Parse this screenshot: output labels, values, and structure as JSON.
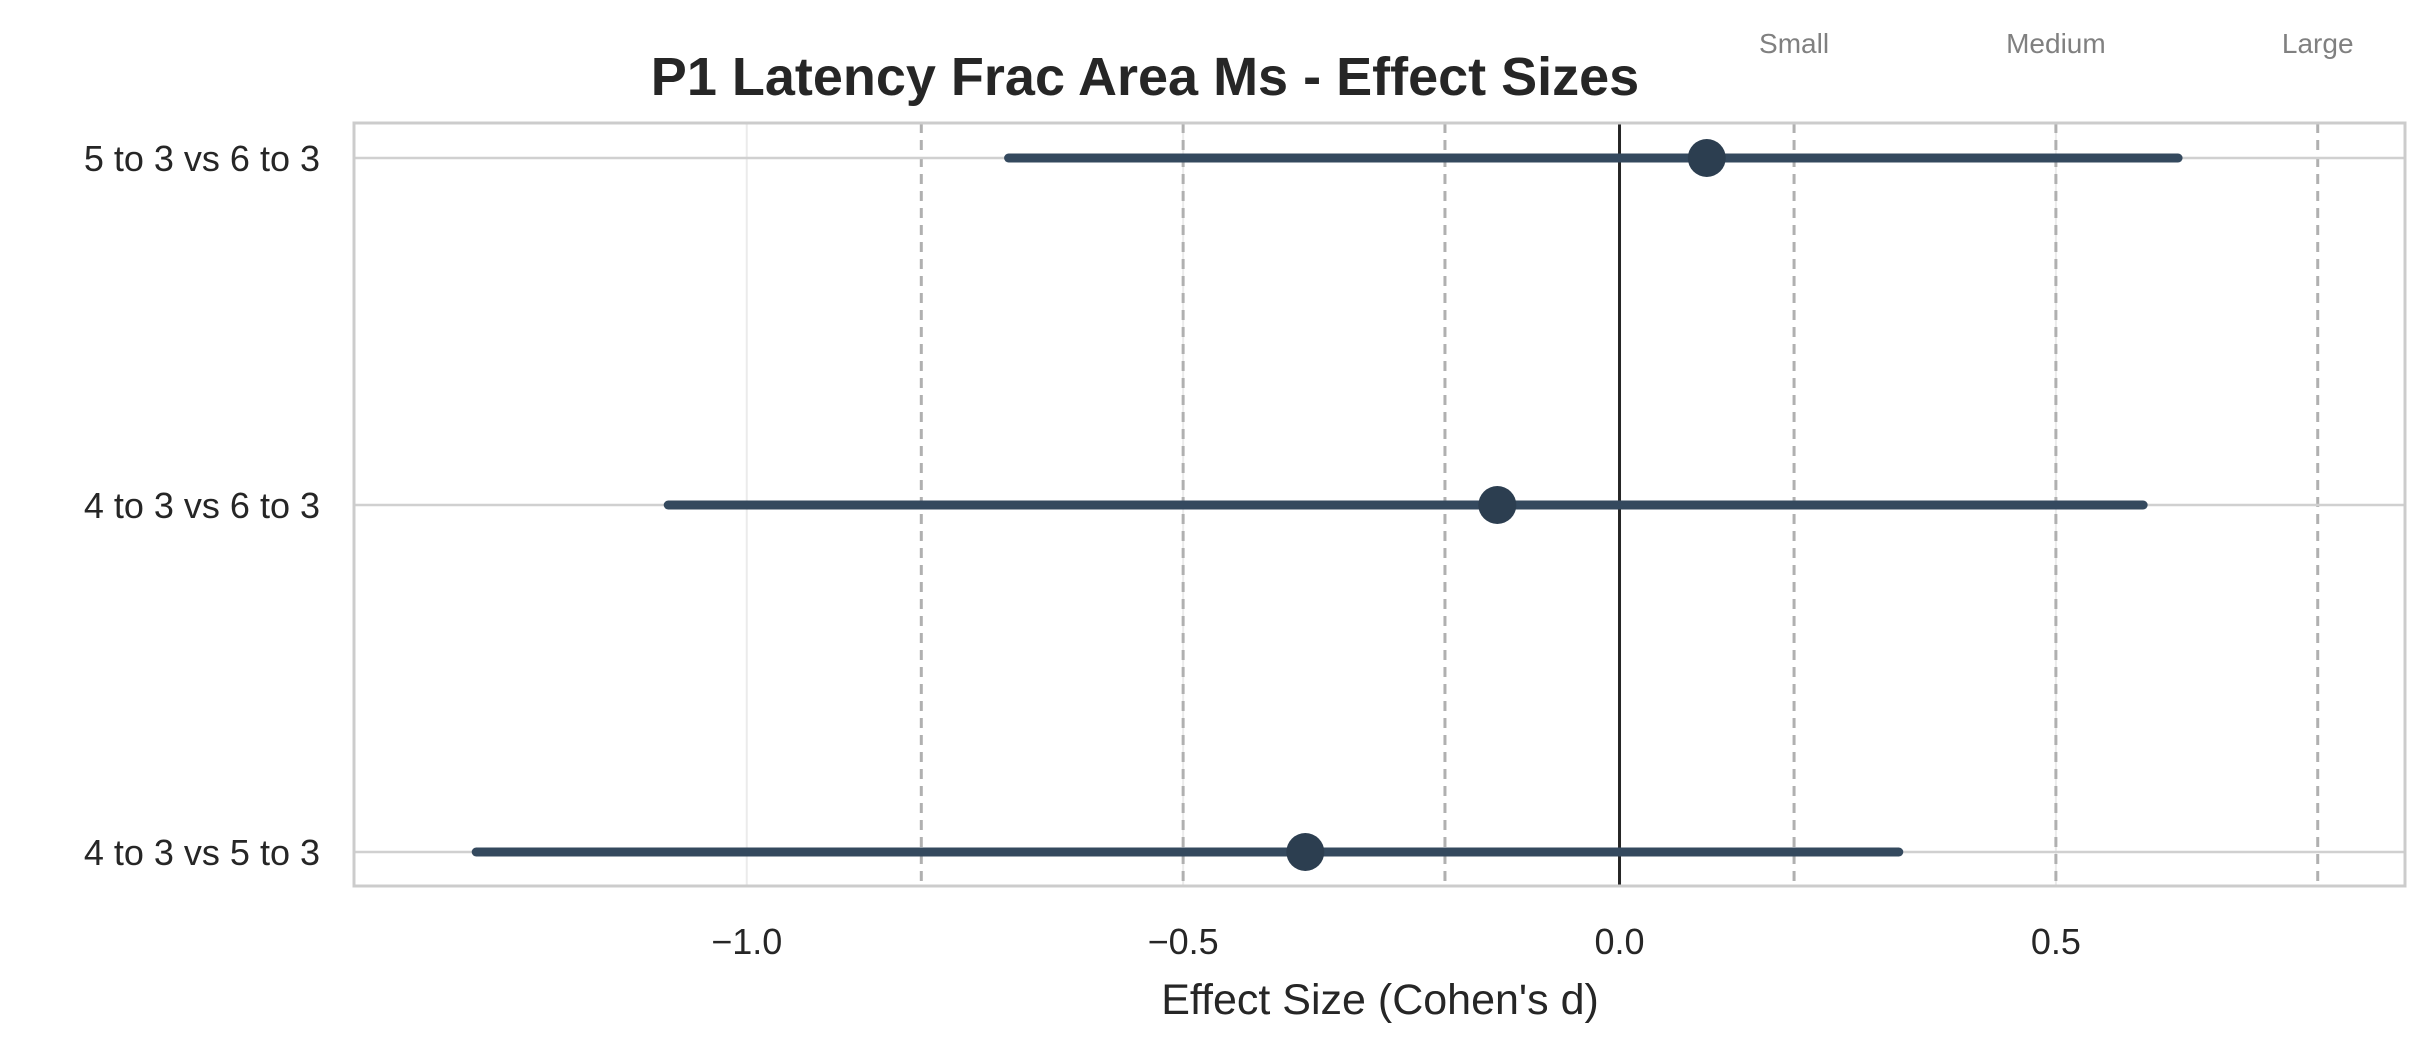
{
  "chart_data": {
    "type": "forest",
    "title": "P1 Latency Frac Area Ms - Effect Sizes",
    "xlabel": "Effect Size (Cohen's d)",
    "ylabel": "",
    "xlim": [
      -1.45,
      0.9
    ],
    "xticks": [
      -1.0,
      -0.5,
      0.0,
      0.5
    ],
    "xtick_labels": [
      "−1.0",
      "−0.5",
      "0.0",
      "0.5"
    ],
    "grid": true,
    "comparisons": [
      {
        "label": "5 to 3 vs 6 to 3",
        "d": 0.1,
        "ci_low": -0.7,
        "ci_high": 0.64
      },
      {
        "label": "4 to 3 vs 6 to 3",
        "d": -0.14,
        "ci_low": -1.09,
        "ci_high": 0.6
      },
      {
        "label": "4 to 3 vs 5 to 3",
        "d": -0.36,
        "ci_low": -1.31,
        "ci_high": 0.32
      }
    ],
    "reference_line": 0.0,
    "thresholds": [
      {
        "value": -0.8,
        "label": ""
      },
      {
        "value": -0.5,
        "label": ""
      },
      {
        "value": -0.2,
        "label": ""
      },
      {
        "value": 0.2,
        "label": "Small"
      },
      {
        "value": 0.5,
        "label": "Medium"
      },
      {
        "value": 0.8,
        "label": "Large"
      }
    ],
    "colors": {
      "marker": "#2c3e50",
      "ci_line": "#34495e",
      "reference": "#262626",
      "threshold": "#b0b0b0",
      "grid": "#ebebeb",
      "frame": "#cccccc"
    }
  }
}
